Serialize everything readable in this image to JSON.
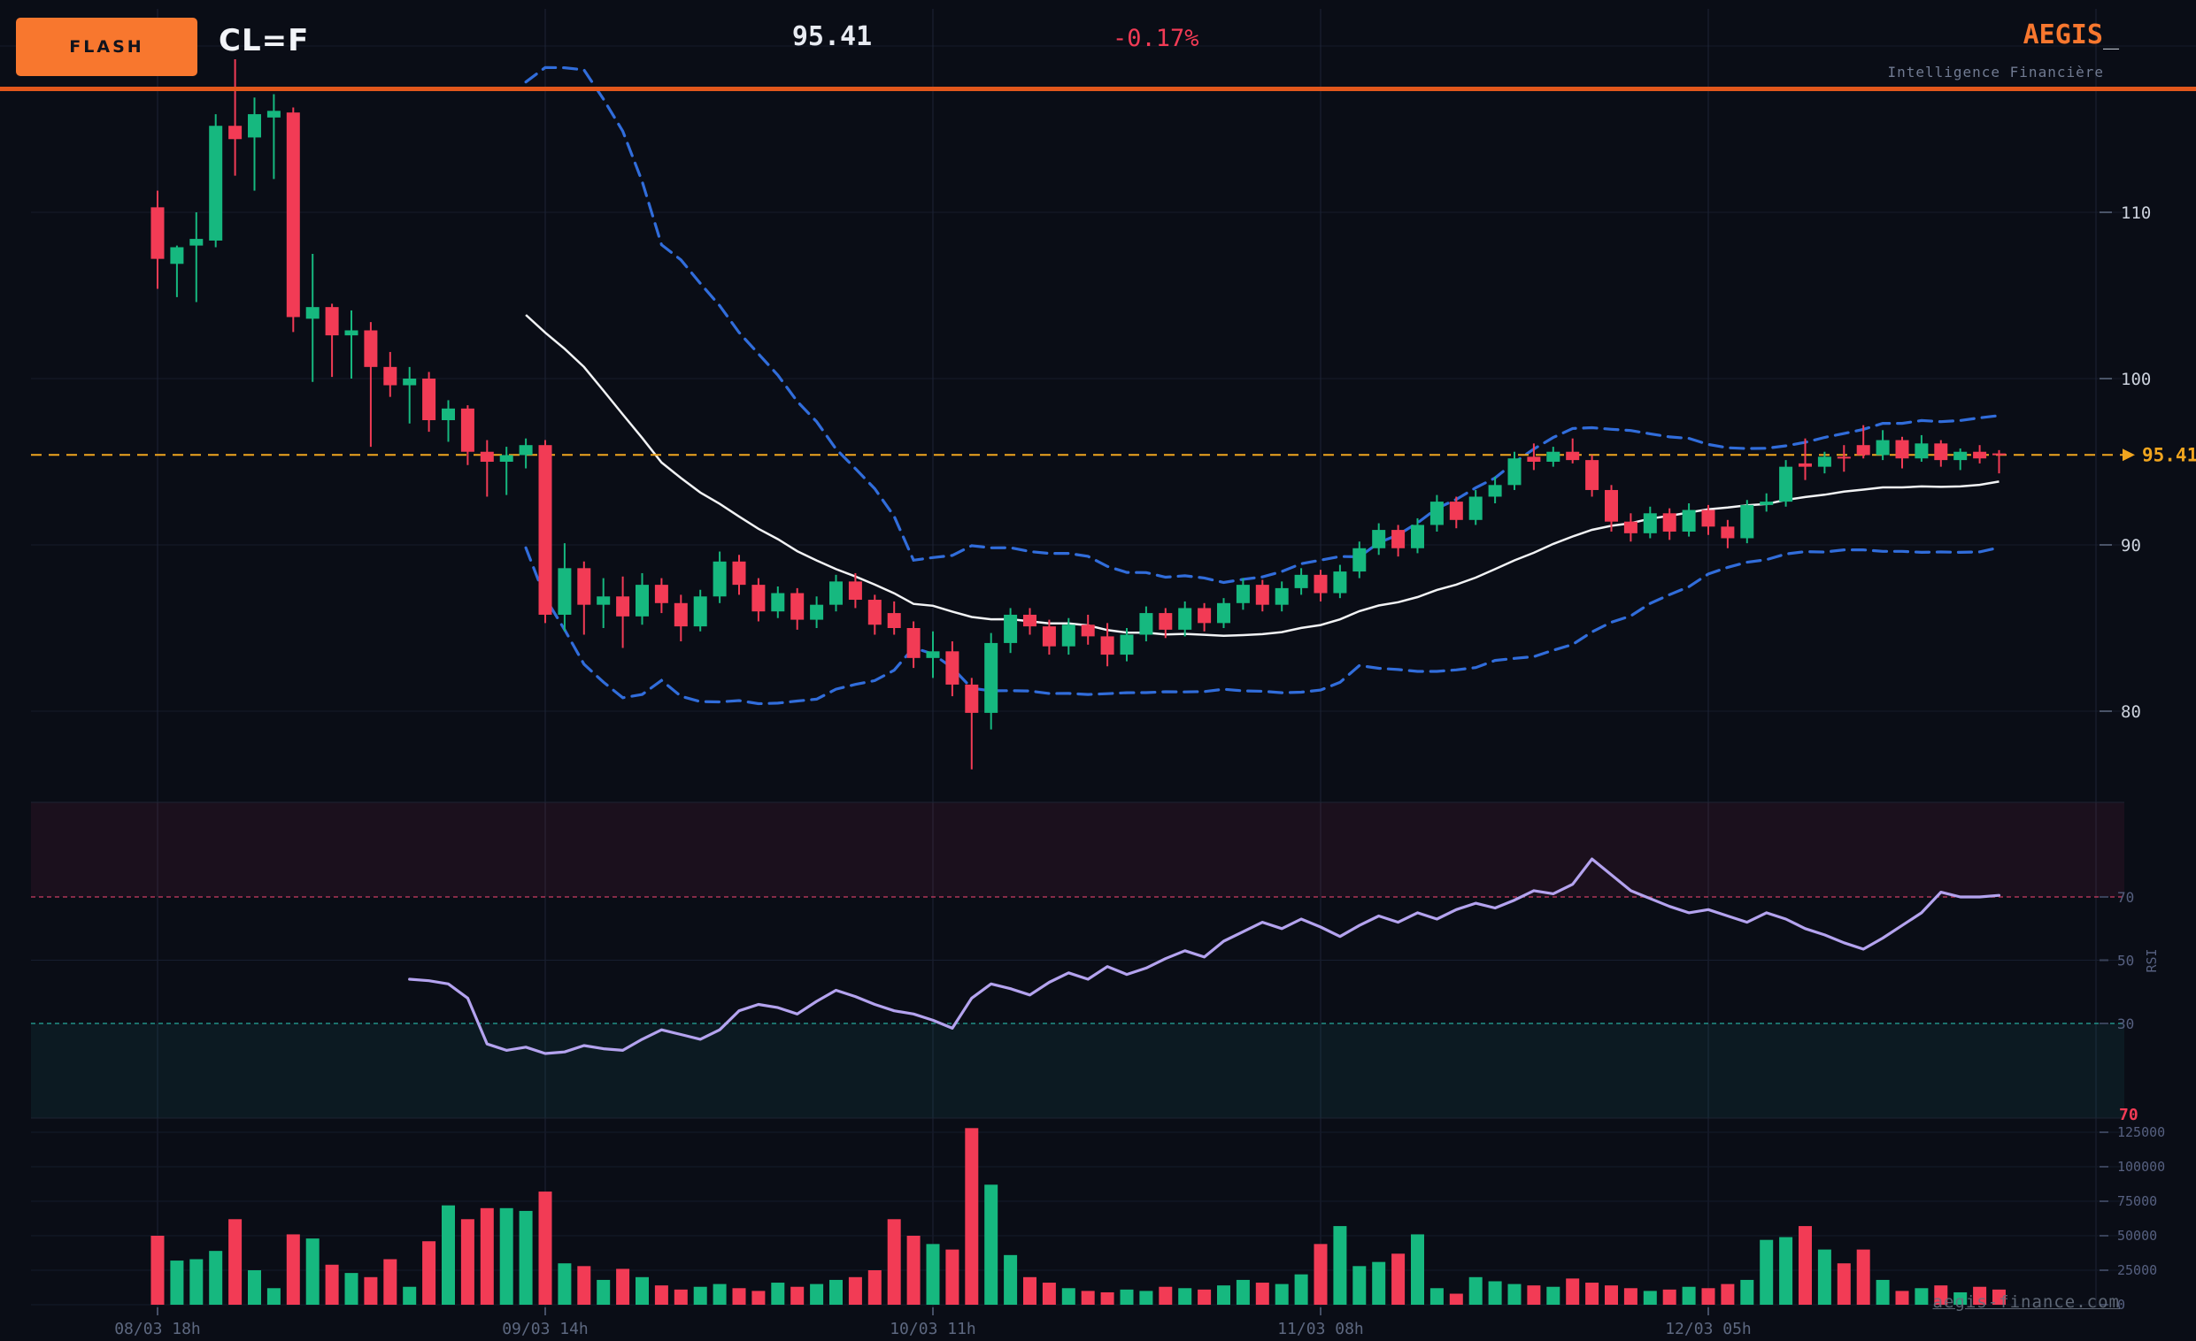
{
  "header": {
    "flash_label": "FLASH",
    "symbol": "CL=F",
    "last_price": "95.41",
    "change_percent": "-0.17%",
    "brand": "AEGIS",
    "brand_cursor": "_",
    "tagline": "Intelligence Financière"
  },
  "watermark": "aegis-finance.com",
  "colors": {
    "background": "#0a0d16",
    "bullish": "#16b87f",
    "bearish": "#f23b55",
    "bollinger_blue": "#316ddb",
    "sma_white": "#f2f3f5",
    "price_line_orange": "#f0a51f",
    "rsi_line_purple": "#b4a3ef",
    "accent_orange": "#f8772e",
    "divider_orange": "#e2571c",
    "overbought_red": "#e0406a",
    "oversold_teal": "#26a69a",
    "grid": "#1d2435",
    "axis_text_bright": "#ccd2dd",
    "axis_text_muted": "#566080",
    "date_text": "#5d6880"
  },
  "axes": {
    "price_ticks": [
      110,
      100,
      90,
      80
    ],
    "price_grid_extra": [
      120
    ],
    "rsi_ticks": [
      70,
      50,
      30
    ],
    "rsi_axis_label": "RSI",
    "rsi_current": "70",
    "volume_ticks": [
      125000,
      100000,
      75000,
      50000,
      25000,
      0
    ],
    "time_ticks": [
      {
        "bar": 0,
        "label": "08/03 18h"
      },
      {
        "bar": 20,
        "label": "09/03 14h"
      },
      {
        "bar": 40,
        "label": "10/03 11h"
      },
      {
        "bar": 60,
        "label": "11/03 08h"
      },
      {
        "bar": 80,
        "label": "12/03 05h"
      }
    ]
  },
  "price_marker": {
    "value": 95.41,
    "label": "95.41"
  },
  "chart_data": {
    "type": "candlestick",
    "title": "CL=F",
    "interval": "1h",
    "bars": 96,
    "panels": [
      "price+bollinger(20,2)",
      "rsi(14)",
      "volume"
    ],
    "ylim_price": [
      74,
      119.5
    ],
    "ylim_rsi": [
      0,
      100
    ],
    "ylim_volume": [
      0,
      135000
    ],
    "ohlc": [
      [
        110.3,
        111.3,
        105.4,
        107.2
      ],
      [
        106.9,
        108.0,
        104.9,
        107.9
      ],
      [
        108.0,
        110.0,
        104.6,
        108.4
      ],
      [
        108.3,
        115.9,
        107.9,
        115.2
      ],
      [
        115.2,
        119.2,
        112.2,
        114.4
      ],
      [
        114.5,
        116.9,
        111.3,
        115.9
      ],
      [
        115.7,
        117.1,
        112.0,
        116.1
      ],
      [
        116.0,
        116.3,
        102.8,
        103.7
      ],
      [
        103.6,
        107.5,
        99.8,
        104.3
      ],
      [
        104.3,
        104.5,
        100.1,
        102.6
      ],
      [
        102.6,
        104.1,
        100.0,
        102.9
      ],
      [
        102.9,
        103.4,
        95.9,
        100.7
      ],
      [
        100.7,
        101.6,
        98.9,
        99.6
      ],
      [
        99.6,
        100.7,
        97.3,
        100.0
      ],
      [
        100.0,
        100.4,
        96.8,
        97.5
      ],
      [
        97.5,
        98.7,
        96.2,
        98.2
      ],
      [
        98.2,
        98.4,
        94.8,
        95.6
      ],
      [
        95.6,
        96.3,
        92.9,
        95.0
      ],
      [
        95.0,
        95.9,
        93.0,
        95.4
      ],
      [
        95.4,
        96.4,
        94.6,
        96.0
      ],
      [
        96.0,
        96.3,
        85.3,
        85.8
      ],
      [
        85.8,
        90.1,
        84.8,
        88.6
      ],
      [
        88.6,
        89.0,
        84.6,
        86.4
      ],
      [
        86.4,
        88.0,
        85.0,
        86.9
      ],
      [
        86.9,
        88.1,
        83.8,
        85.7
      ],
      [
        85.7,
        88.3,
        85.2,
        87.6
      ],
      [
        87.6,
        88.0,
        85.9,
        86.5
      ],
      [
        86.5,
        87.0,
        84.2,
        85.1
      ],
      [
        85.1,
        87.3,
        84.8,
        86.9
      ],
      [
        86.9,
        89.6,
        86.5,
        89.0
      ],
      [
        89.0,
        89.4,
        87.0,
        87.6
      ],
      [
        87.6,
        88.0,
        85.4,
        86.0
      ],
      [
        86.0,
        87.5,
        85.6,
        87.1
      ],
      [
        87.1,
        87.4,
        84.9,
        85.5
      ],
      [
        85.5,
        86.9,
        85.0,
        86.4
      ],
      [
        86.4,
        88.2,
        86.0,
        87.8
      ],
      [
        87.8,
        88.3,
        86.2,
        86.7
      ],
      [
        86.7,
        87.0,
        84.6,
        85.2
      ],
      [
        85.9,
        86.6,
        84.6,
        85.0
      ],
      [
        85.0,
        85.4,
        82.6,
        83.2
      ],
      [
        83.2,
        84.8,
        82.0,
        83.6
      ],
      [
        83.6,
        84.2,
        80.9,
        81.6
      ],
      [
        81.6,
        82.0,
        76.5,
        79.9
      ],
      [
        79.9,
        84.7,
        78.9,
        84.1
      ],
      [
        84.1,
        86.2,
        83.5,
        85.8
      ],
      [
        85.8,
        86.2,
        84.6,
        85.1
      ],
      [
        85.1,
        85.5,
        83.4,
        83.9
      ],
      [
        83.9,
        85.6,
        83.4,
        85.2
      ],
      [
        85.2,
        85.8,
        84.0,
        84.5
      ],
      [
        84.5,
        85.3,
        82.7,
        83.4
      ],
      [
        83.4,
        85.0,
        83.0,
        84.6
      ],
      [
        84.6,
        86.3,
        84.2,
        85.9
      ],
      [
        85.9,
        86.2,
        84.4,
        84.9
      ],
      [
        84.9,
        86.6,
        84.5,
        86.2
      ],
      [
        86.2,
        86.5,
        84.8,
        85.3
      ],
      [
        85.3,
        86.8,
        85.0,
        86.5
      ],
      [
        86.5,
        88.0,
        86.1,
        87.6
      ],
      [
        87.6,
        87.9,
        86.0,
        86.4
      ],
      [
        86.4,
        87.8,
        86.0,
        87.4
      ],
      [
        87.4,
        88.6,
        87.0,
        88.2
      ],
      [
        88.2,
        88.5,
        86.6,
        87.1
      ],
      [
        87.1,
        88.8,
        86.8,
        88.4
      ],
      [
        88.4,
        90.2,
        88.0,
        89.8
      ],
      [
        89.8,
        91.3,
        89.4,
        90.9
      ],
      [
        90.9,
        91.2,
        89.3,
        89.8
      ],
      [
        89.8,
        91.6,
        89.5,
        91.2
      ],
      [
        91.2,
        93.0,
        90.8,
        92.6
      ],
      [
        92.6,
        92.9,
        91.0,
        91.5
      ],
      [
        91.5,
        93.3,
        91.2,
        92.9
      ],
      [
        92.9,
        94.1,
        92.5,
        93.6
      ],
      [
        93.6,
        95.6,
        93.3,
        95.2
      ],
      [
        95.3,
        96.1,
        94.5,
        95.0
      ],
      [
        95.0,
        95.9,
        94.7,
        95.6
      ],
      [
        95.6,
        96.4,
        94.9,
        95.1
      ],
      [
        95.1,
        95.4,
        92.9,
        93.3
      ],
      [
        93.3,
        93.6,
        90.8,
        91.4
      ],
      [
        91.4,
        91.9,
        90.2,
        90.7
      ],
      [
        90.7,
        92.3,
        90.4,
        91.9
      ],
      [
        91.9,
        92.2,
        90.3,
        90.8
      ],
      [
        90.8,
        92.5,
        90.5,
        92.1
      ],
      [
        92.1,
        92.4,
        90.6,
        91.1
      ],
      [
        91.1,
        91.5,
        89.8,
        90.4
      ],
      [
        90.4,
        92.7,
        90.1,
        92.4
      ],
      [
        92.4,
        93.1,
        92.0,
        92.6
      ],
      [
        92.6,
        95.1,
        92.3,
        94.7
      ],
      [
        94.9,
        96.4,
        93.9,
        94.7
      ],
      [
        94.7,
        95.6,
        94.3,
        95.3
      ],
      [
        95.3,
        96.0,
        94.4,
        95.2
      ],
      [
        96.0,
        97.2,
        95.2,
        95.4
      ],
      [
        95.4,
        96.9,
        95.1,
        96.3
      ],
      [
        96.3,
        96.5,
        94.6,
        95.2
      ],
      [
        95.2,
        96.6,
        95.0,
        96.1
      ],
      [
        96.1,
        96.3,
        94.7,
        95.1
      ],
      [
        95.1,
        95.8,
        94.5,
        95.6
      ],
      [
        95.6,
        96.0,
        94.9,
        95.2
      ],
      [
        95.5,
        95.7,
        94.3,
        95.41
      ]
    ],
    "volume": [
      50000,
      32000,
      33000,
      39000,
      62000,
      25000,
      12000,
      51000,
      48000,
      29000,
      23000,
      20000,
      33000,
      13000,
      46000,
      72000,
      62000,
      70000,
      70000,
      68000,
      82000,
      30000,
      28000,
      18000,
      26000,
      20000,
      14000,
      11000,
      13000,
      15000,
      12000,
      10000,
      16000,
      13000,
      15000,
      18000,
      20000,
      25000,
      62000,
      50000,
      44000,
      40000,
      128000,
      87000,
      36000,
      20000,
      16000,
      12000,
      10000,
      9000,
      11000,
      10000,
      13000,
      12000,
      11000,
      14000,
      18000,
      16000,
      15000,
      22000,
      44000,
      57000,
      28000,
      31000,
      37000,
      51000,
      12000,
      8000,
      20000,
      17000,
      15000,
      14000,
      13000,
      19000,
      16000,
      14000,
      12000,
      10000,
      11000,
      13000,
      12000,
      15000,
      18000,
      47000,
      49000,
      57000,
      40000,
      30000,
      40000,
      18000,
      10000,
      12000,
      14000,
      9000,
      13000,
      11000
    ],
    "bollinger": {
      "period": 20,
      "stddev_mult": 2,
      "computed_from_close": true
    },
    "rsi_start_bar": 13,
    "rsi": [
      44,
      43.5,
      42.5,
      38,
      23.5,
      21.5,
      22.5,
      20.5,
      21,
      23,
      22,
      21.5,
      25,
      28,
      26.5,
      25,
      28,
      34,
      36,
      35,
      33,
      37,
      40.5,
      38.5,
      36,
      34,
      33,
      31,
      28.5,
      38,
      42.5,
      41,
      39,
      43,
      46,
      44,
      48,
      45.5,
      47.5,
      50.5,
      53,
      51,
      56,
      59,
      62,
      60,
      63,
      60.5,
      57.5,
      61,
      64,
      62,
      65,
      63,
      66,
      68,
      66.5,
      69,
      72,
      71,
      74,
      82,
      77,
      72,
      69.5,
      67,
      65,
      66,
      64,
      62,
      65,
      63,
      60,
      58,
      55.5,
      53.5,
      57,
      61,
      65,
      71.5,
      70,
      70,
      70.5
    ]
  }
}
